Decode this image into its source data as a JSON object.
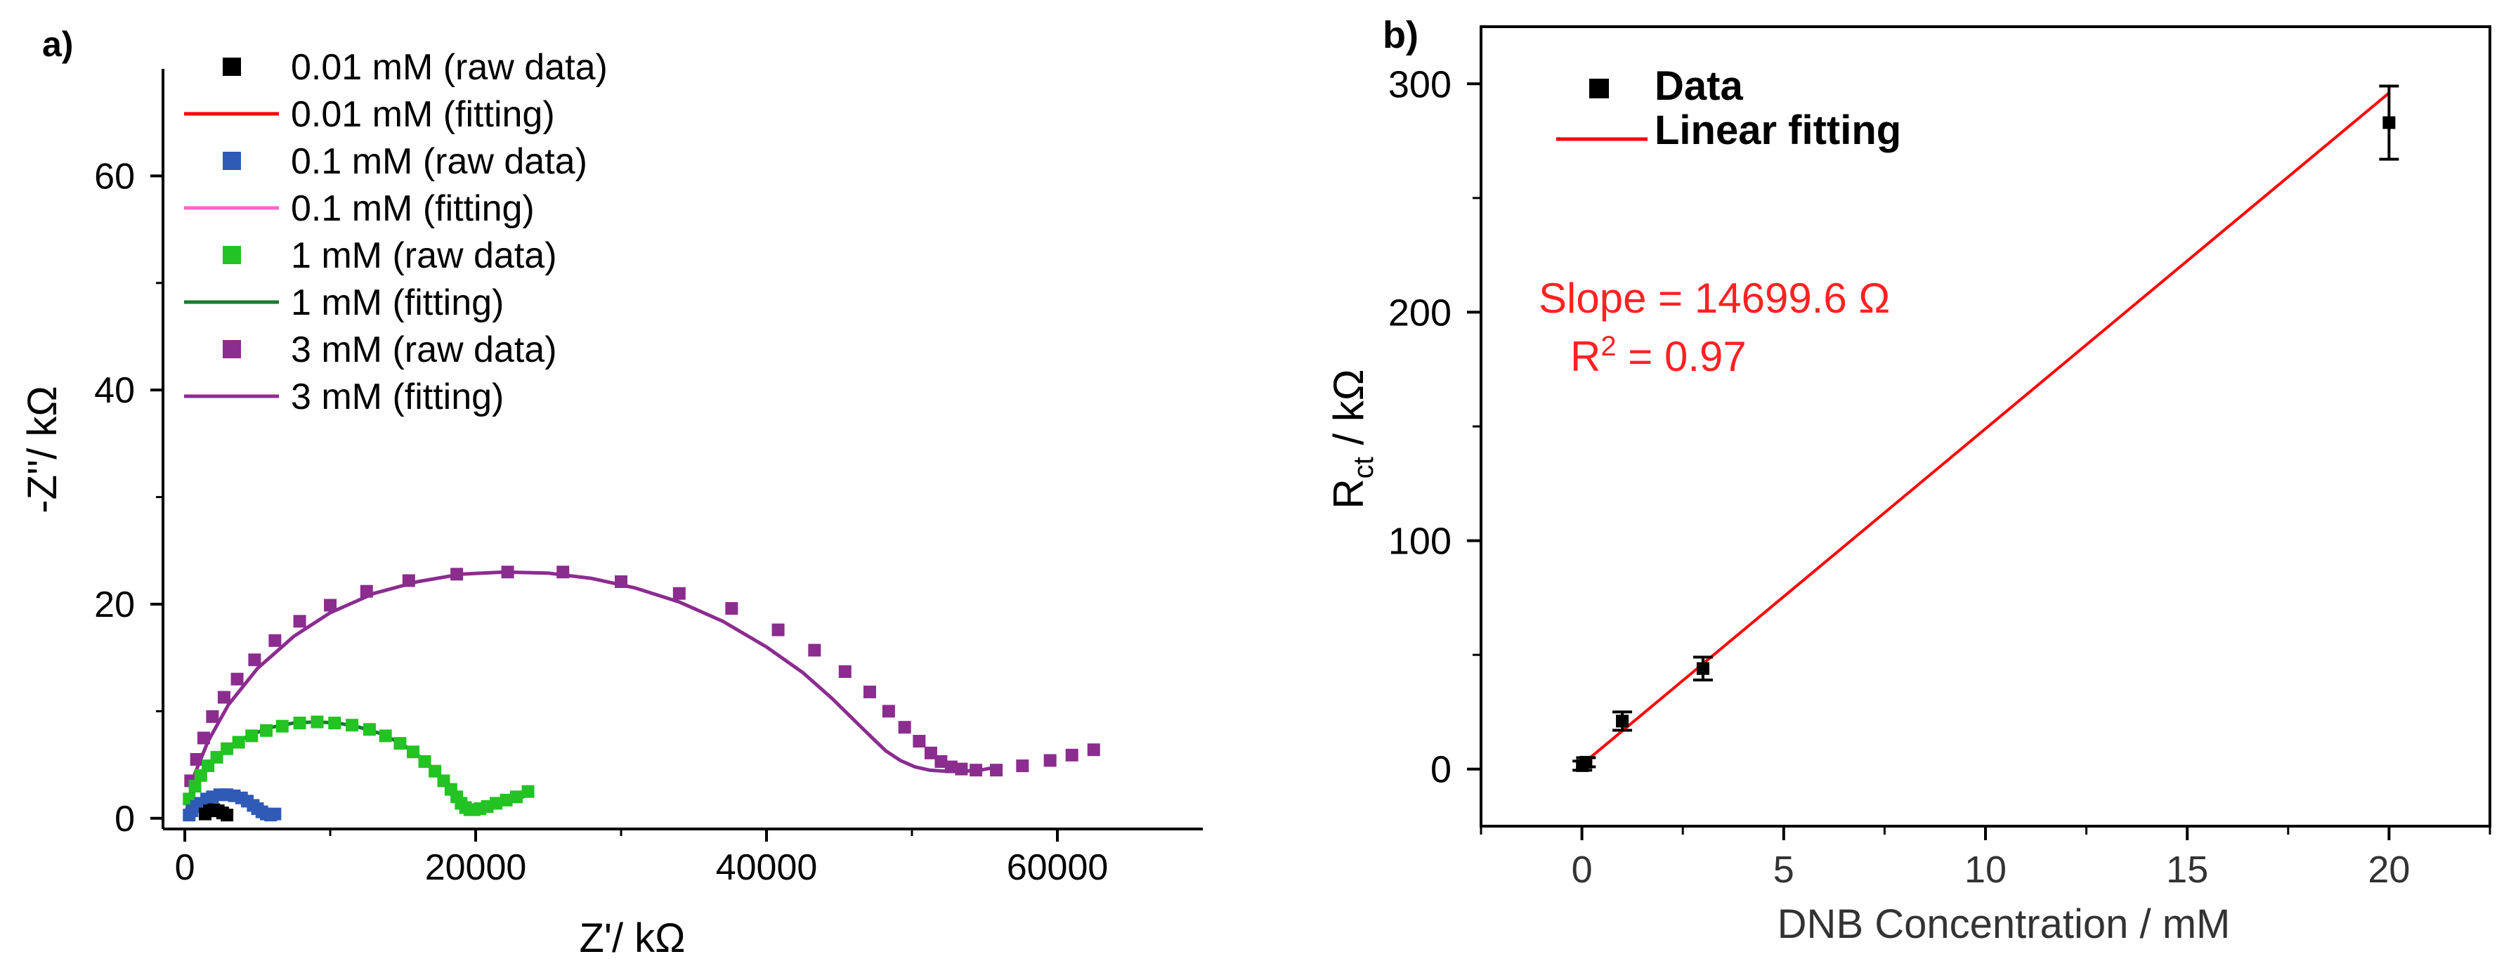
{
  "figure": {
    "panel_a_label": "a)",
    "panel_b_label": "b)"
  },
  "chart_data": [
    {
      "type": "scatter",
      "panel": "a",
      "title": "",
      "xlabel": "Z'/ kΩ",
      "ylabel": "-Z''/ kΩ",
      "xlim": [
        -1500,
        70000
      ],
      "ylim": [
        -1,
        70
      ],
      "xticks": [
        0,
        20000,
        40000,
        60000
      ],
      "xtick_labels": [
        "0",
        "20000",
        "40000",
        "60000"
      ],
      "yticks": [
        0,
        20,
        40,
        60
      ],
      "ytick_labels": [
        "0",
        "20",
        "40",
        "60"
      ],
      "legend_position": "top-left",
      "series": [
        {
          "name": "0.01 mM (raw data)",
          "kind": "raw",
          "color": "#000000",
          "x": [
            1400,
            1700,
            2000,
            2300,
            2600,
            2900
          ],
          "y": [
            0.4,
            0.7,
            0.8,
            0.7,
            0.5,
            0.3
          ]
        },
        {
          "name": "0.01 mM (fitting)",
          "kind": "fit",
          "color": "#ff0000",
          "x": [
            1400,
            1700,
            2000,
            2300,
            2600,
            2900
          ],
          "y": [
            0.4,
            0.7,
            0.8,
            0.7,
            0.5,
            0.3
          ]
        },
        {
          "name": "0.1 mM (raw data)",
          "kind": "raw",
          "color": "#2f5bb7",
          "x": [
            300,
            500,
            800,
            1100,
            1500,
            1900,
            2400,
            2900,
            3400,
            3900,
            4300,
            4700,
            5000,
            5300,
            5600,
            5900,
            6200
          ],
          "y": [
            0.3,
            0.7,
            1.1,
            1.4,
            1.8,
            2.0,
            2.2,
            2.2,
            2.1,
            1.9,
            1.6,
            1.2,
            0.9,
            0.6,
            0.4,
            0.3,
            0.4
          ]
        },
        {
          "name": "0.1 mM (fitting)",
          "kind": "fit",
          "color": "#ff66cc",
          "x": [
            300,
            600,
            1000,
            1500,
            2000,
            2500,
            3000,
            3500,
            4000,
            4500,
            5000,
            5400,
            5800,
            6100
          ],
          "y": [
            0.3,
            0.8,
            1.3,
            1.8,
            2.1,
            2.2,
            2.2,
            2.0,
            1.7,
            1.3,
            0.9,
            0.6,
            0.4,
            0.4
          ]
        },
        {
          "name": "1 mM (raw data)",
          "kind": "raw",
          "color": "#22c322",
          "x": [
            300,
            700,
            1100,
            1600,
            2200,
            2900,
            3700,
            4600,
            5600,
            6700,
            7900,
            9100,
            10300,
            11500,
            12700,
            13800,
            14800,
            15700,
            16500,
            17200,
            17800,
            18300,
            18700,
            19000,
            19300,
            19600,
            19900,
            20300,
            20800,
            21400,
            22100,
            22800,
            23600
          ],
          "y": [
            1.8,
            3.0,
            4.0,
            4.9,
            5.7,
            6.5,
            7.1,
            7.7,
            8.2,
            8.6,
            8.9,
            9.0,
            8.9,
            8.7,
            8.3,
            7.7,
            7.0,
            6.2,
            5.3,
            4.4,
            3.5,
            2.7,
            2.0,
            1.4,
            1.0,
            0.8,
            0.8,
            0.9,
            1.1,
            1.4,
            1.7,
            2.0,
            2.5
          ]
        },
        {
          "name": "1 mM (fitting)",
          "kind": "fit",
          "color": "#1a7a2e",
          "x": [
            300,
            1000,
            2000,
            3000,
            4500,
            6000,
            7500,
            9000,
            10500,
            12000,
            13500,
            15000,
            16500,
            17500,
            18300,
            18900,
            19400,
            19900,
            20600,
            21500,
            22500,
            23600
          ],
          "y": [
            1.5,
            3.6,
            5.4,
            6.6,
            7.8,
            8.5,
            8.9,
            9.0,
            8.9,
            8.5,
            7.9,
            6.9,
            5.4,
            4.0,
            2.7,
            1.7,
            1.0,
            0.8,
            0.9,
            1.2,
            1.6,
            2.2
          ]
        },
        {
          "name": "3 mM (raw data)",
          "kind": "raw",
          "color": "#8b2c8f",
          "x": [
            400,
            800,
            1300,
            1900,
            2700,
            3600,
            4800,
            6200,
            7900,
            10000,
            12500,
            15400,
            18700,
            22200,
            26000,
            30000,
            34000,
            37600,
            40800,
            43300,
            45400,
            47100,
            48400,
            49500,
            50500,
            51300,
            52000,
            52700,
            53400,
            54400,
            55800,
            57600,
            59500,
            61000,
            62500
          ],
          "y": [
            3.5,
            5.5,
            7.5,
            9.5,
            11.3,
            13.0,
            14.8,
            16.6,
            18.4,
            19.9,
            21.2,
            22.2,
            22.8,
            23.0,
            23.0,
            22.1,
            21.0,
            19.6,
            17.6,
            15.7,
            13.7,
            11.8,
            10.0,
            8.5,
            7.2,
            6.1,
            5.3,
            4.8,
            4.6,
            4.5,
            4.5,
            4.9,
            5.4,
            5.9,
            6.4
          ]
        },
        {
          "name": "3 mM (fitting)",
          "kind": "fit",
          "color": "#8b2c8f",
          "x": [
            0,
            700,
            1600,
            3000,
            5000,
            7500,
            10000,
            13000,
            16000,
            19000,
            22000,
            25000,
            28000,
            31000,
            34000,
            37000,
            40000,
            42500,
            44500,
            46000,
            47200,
            48200,
            49200,
            50200,
            51200,
            52300,
            53500,
            54700,
            55900
          ],
          "y": [
            0.0,
            4.2,
            7.2,
            10.6,
            14.0,
            17.0,
            19.2,
            21.0,
            22.1,
            22.8,
            23.0,
            22.9,
            22.4,
            21.5,
            20.2,
            18.4,
            16.0,
            13.6,
            11.2,
            9.2,
            7.6,
            6.3,
            5.4,
            4.8,
            4.5,
            4.4,
            4.4,
            4.5,
            4.8
          ]
        }
      ]
    },
    {
      "type": "scatter",
      "panel": "b",
      "title": "",
      "xlabel": "DNB Concentration / mM",
      "ylabel_main": "R",
      "ylabel_sub": "ct",
      "ylabel_rest": " / kΩ",
      "xlim": [
        -2.5,
        22.5
      ],
      "ylim": [
        -25,
        325
      ],
      "xticks": [
        0,
        5,
        10,
        15,
        20
      ],
      "xtick_labels": [
        "0",
        "5",
        "10",
        "15",
        "20"
      ],
      "yticks": [
        0,
        100,
        200,
        300
      ],
      "ytick_labels": [
        "0",
        "100",
        "200",
        "300"
      ],
      "legend_position": "top-left",
      "legend": [
        "Data",
        "Linear fitting"
      ],
      "series": [
        {
          "name": "Data",
          "kind": "raw",
          "color": "#000000",
          "x": [
            0.01,
            0.1,
            1,
            3,
            20
          ],
          "y": [
            1.5,
            3.0,
            21,
            44,
            283
          ],
          "yerr": [
            2,
            2,
            4,
            5,
            16
          ]
        },
        {
          "name": "Linear fitting",
          "kind": "fit",
          "color": "#ff0000",
          "x": [
            0,
            20
          ],
          "y": [
            2,
            296
          ]
        }
      ],
      "annotations": {
        "slope_text": "Slope = 14699.6 Ω",
        "r2_label": "R",
        "r2_sup": "2",
        "r2_value": " = 0.97",
        "color": "#ff2222"
      }
    }
  ]
}
